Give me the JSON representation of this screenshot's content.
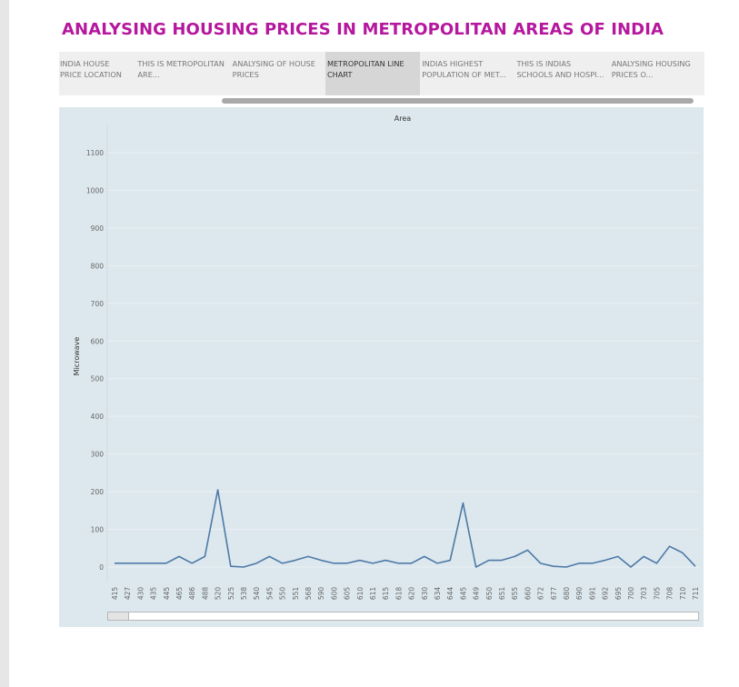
{
  "page": {
    "title": "ANALYSING HOUSING PRICES IN METROPOLITAN AREAS OF INDIA"
  },
  "tabs": [
    {
      "label": "INDIA HOUSE PRICE LOCATION",
      "active": false
    },
    {
      "label": "THIS IS METROPOLITAN ARE...",
      "active": false
    },
    {
      "label": "ANALYSING OF HOUSE PRICES",
      "active": false
    },
    {
      "label": "METROPOLITAN LINE CHART",
      "active": true
    },
    {
      "label": "INDIAS HIGHEST POPULATION OF MET...",
      "active": false
    },
    {
      "label": "THIS IS INDIAS SCHOOLS AND HOSPI...",
      "active": false
    },
    {
      "label": "ANALYSING HOUSING PRICES O...",
      "active": false
    }
  ],
  "colors": {
    "title": "#b5179e",
    "line": "#4e79a7",
    "panel": "#dde8ee"
  },
  "chart_data": {
    "type": "line",
    "title": "Area",
    "ylabel": "Microwave",
    "xlabel": "",
    "ylim": [
      0,
      1100
    ],
    "yticks": [
      0,
      100,
      200,
      300,
      400,
      500,
      600,
      700,
      800,
      900,
      1000,
      1100
    ],
    "grid": true,
    "categories": [
      "415",
      "427",
      "430",
      "435",
      "445",
      "465",
      "486",
      "488",
      "520",
      "525",
      "538",
      "540",
      "545",
      "550",
      "551",
      "568",
      "590",
      "600",
      "605",
      "610",
      "611",
      "615",
      "618",
      "620",
      "630",
      "634",
      "644",
      "645",
      "649",
      "650",
      "651",
      "655",
      "660",
      "672",
      "677",
      "680",
      "690",
      "691",
      "692",
      "695",
      "700",
      "703",
      "705",
      "708",
      "710",
      "711"
    ],
    "values": [
      10,
      10,
      10,
      10,
      10,
      28,
      10,
      28,
      205,
      2,
      0,
      10,
      28,
      10,
      18,
      28,
      18,
      10,
      10,
      18,
      10,
      18,
      10,
      10,
      28,
      10,
      18,
      170,
      0,
      18,
      18,
      28,
      45,
      10,
      2,
      0,
      10,
      10,
      18,
      28,
      0,
      28,
      10,
      55,
      38,
      2
    ]
  }
}
